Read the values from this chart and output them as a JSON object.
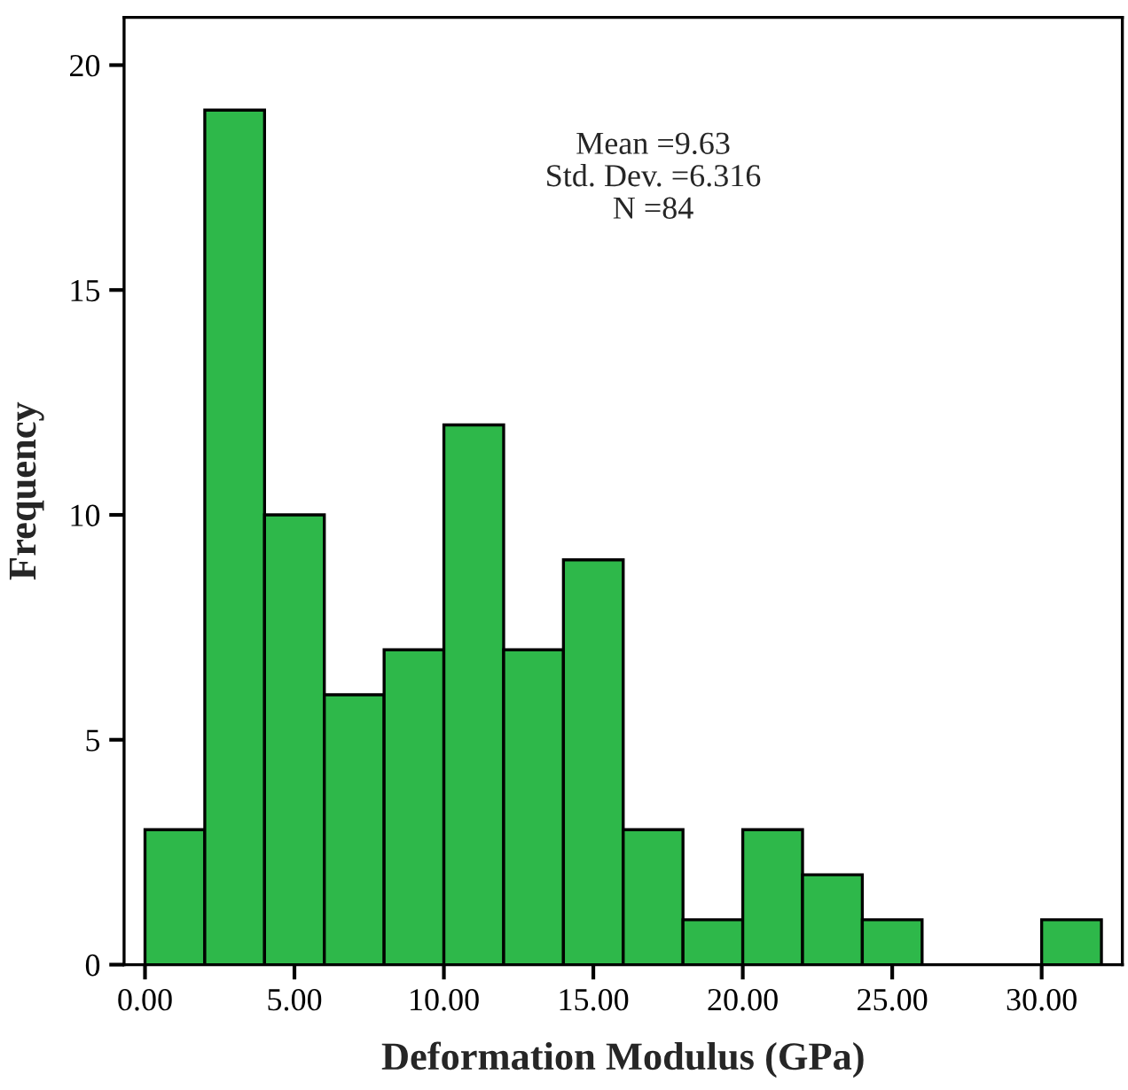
{
  "chart_data": {
    "type": "histogram",
    "xlabel": "Deformation Modulus (GPa)",
    "ylabel": "Frequency",
    "bins": [
      0,
      2,
      4,
      6,
      8,
      10,
      12,
      14,
      16,
      18,
      20,
      22,
      24,
      26,
      28,
      30,
      32
    ],
    "values": [
      3,
      19,
      10,
      6,
      7,
      12,
      7,
      9,
      3,
      1,
      3,
      2,
      1,
      0,
      0,
      1
    ],
    "color": "#2eb84a",
    "xlim": [
      -0.7,
      32.7
    ],
    "ylim": [
      0,
      21.06
    ],
    "xticks": [
      {
        "value": 0,
        "label": "0.00"
      },
      {
        "value": 5,
        "label": "5.00"
      },
      {
        "value": 10,
        "label": "10.00"
      },
      {
        "value": 15,
        "label": "15.00"
      },
      {
        "value": 20,
        "label": "20.00"
      },
      {
        "value": 25,
        "label": "25.00"
      },
      {
        "value": 30,
        "label": "30.00"
      }
    ],
    "yticks": [
      0,
      5,
      10,
      15,
      20
    ],
    "annotations": [
      "Mean =9.63\nStd. Dev. =6.316\nN =84"
    ],
    "grid": false,
    "legend": false
  }
}
